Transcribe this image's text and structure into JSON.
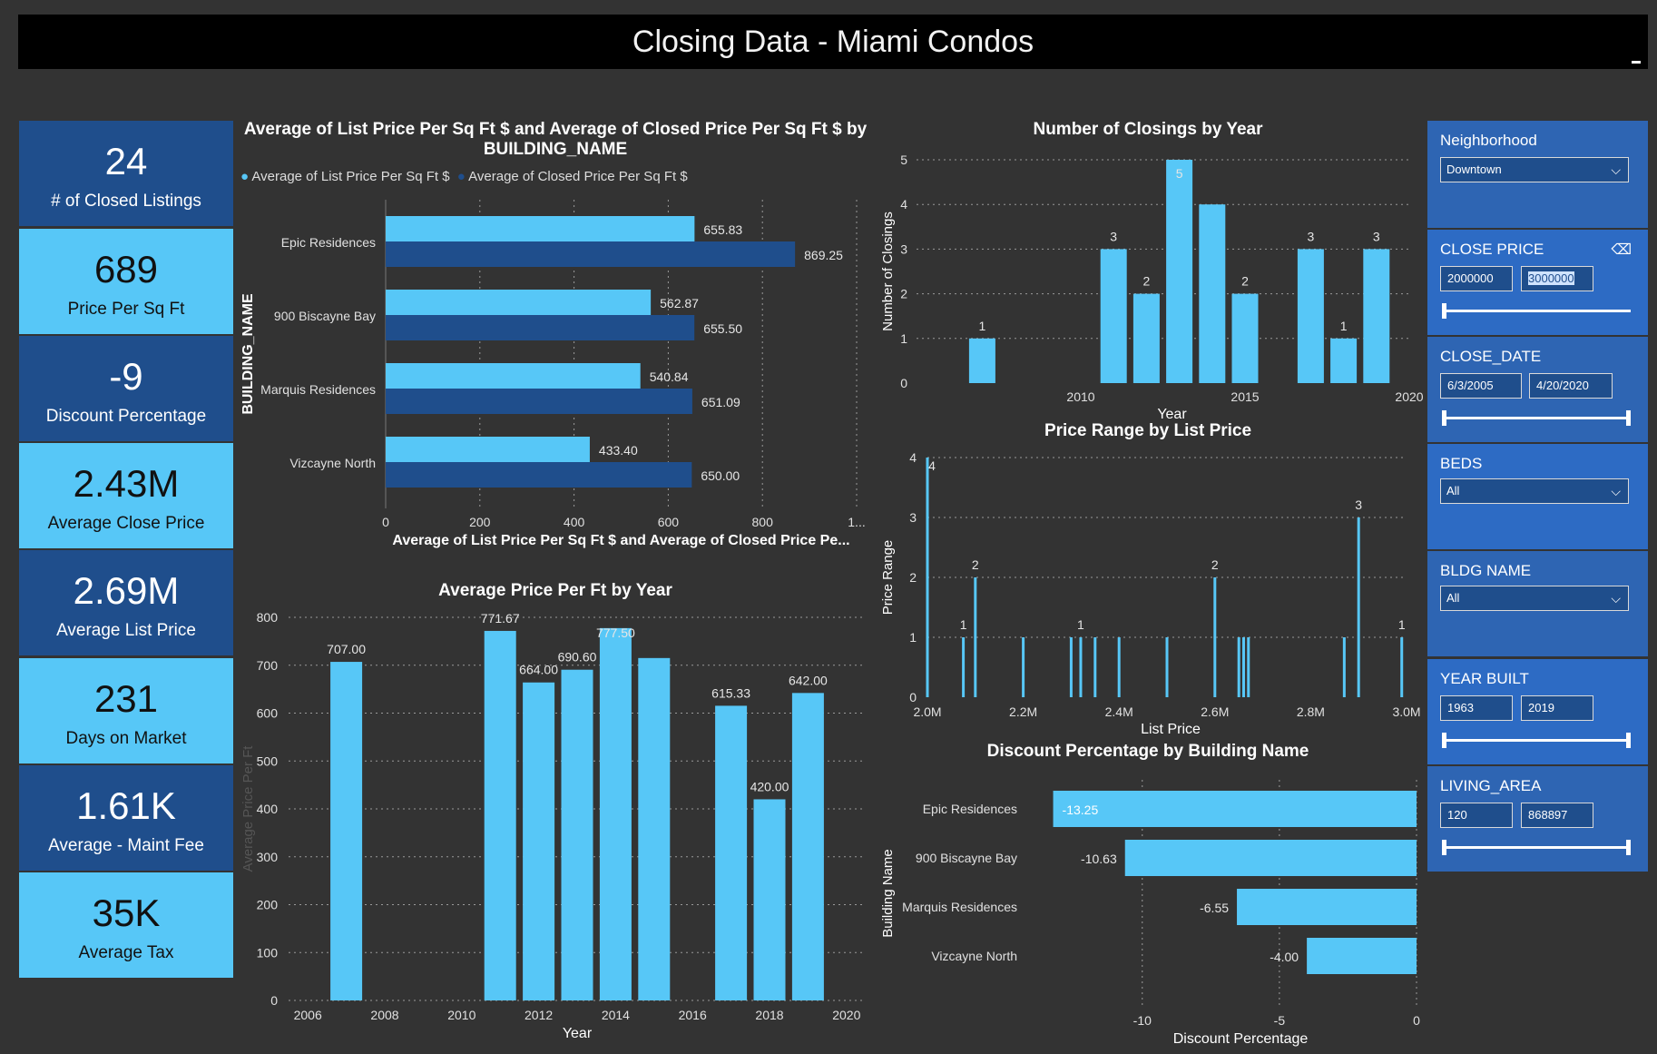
{
  "header": {
    "title": "Closing Data - Miami Condos"
  },
  "kpis": [
    {
      "value": "24",
      "label": "# of Closed Listings"
    },
    {
      "value": "689",
      "label": "Price Per Sq Ft"
    },
    {
      "value": "-9",
      "label": "Discount Percentage"
    },
    {
      "value": "2.43M",
      "label": "Average Close Price"
    },
    {
      "value": "2.69M",
      "label": "Average List Price"
    },
    {
      "value": "231",
      "label": "Days on Market"
    },
    {
      "value": "1.61K",
      "label": "Average - Maint Fee"
    },
    {
      "value": "35K",
      "label": "Average Tax"
    }
  ],
  "slicers": {
    "neighborhood": {
      "title": "Neighborhood",
      "selected": "Downtown"
    },
    "close_price": {
      "title": "CLOSE PRICE",
      "min": "2000000",
      "max": "3000000"
    },
    "close_date": {
      "title": "CLOSE_DATE",
      "min": "6/3/2005",
      "max": "4/20/2020"
    },
    "beds": {
      "title": "BEDS",
      "selected": "All"
    },
    "bldg_name": {
      "title": "BLDG NAME",
      "selected": "All"
    },
    "year_built": {
      "title": "YEAR BUILT",
      "min": "1963",
      "max": "2019"
    },
    "living_area": {
      "title": "LIVING_AREA",
      "min": "120",
      "max": "868897"
    }
  },
  "colors": {
    "light": "#57c7f7",
    "dark": "#1f4e8c",
    "bg": "#333333"
  },
  "chart_data": [
    {
      "id": "bldg",
      "type": "bar",
      "orientation": "horizontal",
      "title": "Average of List Price Per Sq Ft $ and Average of Closed Price Per Sq Ft $ by BUILDING_NAME",
      "xlabel": "Average of List Price Per Sq Ft $ and Average of Closed Price Pe...",
      "ylabel": "BUILDING_NAME",
      "legend_position": "top-left",
      "categories": [
        "Epic Residences",
        "900 Biscayne Bay",
        "Marquis Residences",
        "Vizcayne North"
      ],
      "series": [
        {
          "name": "Average of List Price Per Sq Ft $",
          "color": "#57c7f7",
          "values": [
            655.83,
            562.87,
            540.84,
            433.4
          ],
          "labels": [
            "655.83",
            "562.87",
            "540.84",
            "433.40"
          ]
        },
        {
          "name": "Average of Closed Price Per Sq Ft $",
          "color": "#1f4e8c",
          "values": [
            869.25,
            655.5,
            651.09,
            650.0
          ],
          "labels": [
            "869.25",
            "655.50",
            "651.09",
            "650.00"
          ]
        }
      ],
      "xticks": [
        "0",
        "200",
        "400",
        "600",
        "800",
        "1..."
      ],
      "xlim": [
        0,
        1000
      ]
    },
    {
      "id": "closings",
      "type": "bar",
      "title": "Number of Closings by Year",
      "xlabel": "Year",
      "ylabel": "Number of Closings",
      "x": [
        2007,
        2011,
        2012,
        2013,
        2014,
        2015,
        2017,
        2018,
        2019
      ],
      "values": [
        1,
        3,
        2,
        5,
        4,
        2,
        3,
        1,
        3
      ],
      "labels": [
        "1",
        "3",
        "2",
        "5",
        "",
        "2",
        "3",
        "1",
        "3"
      ],
      "xticks": [
        "2010",
        "2015",
        "2020"
      ],
      "yticks": [
        "0",
        "1",
        "2",
        "3",
        "4",
        "5"
      ],
      "xlim": [
        2005,
        2020
      ],
      "ylim": [
        0,
        5
      ]
    },
    {
      "id": "pricerange",
      "type": "bar",
      "title": "Price Range by List Price",
      "xlabel": "List Price",
      "ylabel": "Price Range",
      "x": [
        2.0,
        2.075,
        2.1,
        2.2,
        2.3,
        2.32,
        2.35,
        2.4,
        2.5,
        2.6,
        2.65,
        2.66,
        2.67,
        2.87,
        2.9,
        2.99
      ],
      "values": [
        4,
        1,
        2,
        1,
        1,
        1,
        1,
        1,
        1,
        2,
        1,
        1,
        1,
        1,
        3,
        1
      ],
      "labels": [
        "4",
        "1",
        "2",
        "",
        "",
        "1",
        "",
        "",
        "",
        "2",
        "",
        "",
        "",
        "",
        "3",
        "1"
      ],
      "xticks": [
        "2.0M",
        "2.2M",
        "2.4M",
        "2.6M",
        "2.8M",
        "3.0M"
      ],
      "yticks": [
        "0",
        "1",
        "2",
        "3",
        "4"
      ],
      "xlim": [
        2.0,
        3.0
      ],
      "ylim": [
        0,
        4
      ]
    },
    {
      "id": "ppsf",
      "type": "bar",
      "title": "Average Price Per Ft by Year",
      "xlabel": "Year",
      "ylabel": "Average Price Per Ft",
      "x": [
        2007,
        2011,
        2012,
        2013,
        2014,
        2015,
        2017,
        2018,
        2019
      ],
      "values": [
        707.0,
        771.67,
        664.0,
        690.6,
        777.5,
        715.0,
        615.33,
        420.0,
        642.0
      ],
      "labels": [
        "707.00",
        "771.67",
        "664.00",
        "690.60",
        "777.50",
        "",
        "615.33",
        "420.00",
        "642.00"
      ],
      "xticks": [
        "2006",
        "2008",
        "2010",
        "2012",
        "2014",
        "2016",
        "2018",
        "2020"
      ],
      "yticks": [
        "0",
        "100",
        "200",
        "300",
        "400",
        "500",
        "600",
        "700",
        "800"
      ],
      "xlim": [
        2005.5,
        2020.5
      ],
      "ylim": [
        0,
        800
      ]
    },
    {
      "id": "discount",
      "type": "bar",
      "orientation": "horizontal",
      "title": "Discount Percentage by Building Name",
      "xlabel": "Discount Percentage",
      "ylabel": "Building Name",
      "categories": [
        "Epic Residences",
        "900 Biscayne Bay",
        "Marquis Residences",
        "Vizcayne North"
      ],
      "values": [
        -13.25,
        -10.63,
        -6.55,
        -4.0
      ],
      "labels": [
        "-13.25",
        "-10.63",
        "-6.55",
        "-4.00"
      ],
      "xticks": [
        "-10",
        "-5",
        "0"
      ],
      "xlim": [
        -13.5,
        0
      ]
    }
  ]
}
